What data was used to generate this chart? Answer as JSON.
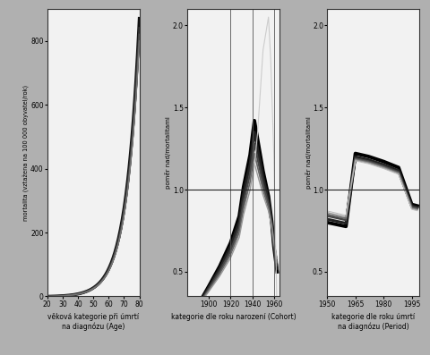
{
  "background_color": "#b0b0b0",
  "plot_bg_color": "#f2f2f2",
  "panel1": {
    "xlabel": "věková kategorie při úmrtí\nna diagnózu (Age)",
    "ylabel": "mortalita (vztažena na 100 000 obyvatel/rok)",
    "xlim": [
      20,
      80
    ],
    "ylim": [
      0,
      900
    ],
    "yticks": [
      0,
      200,
      400,
      600,
      800
    ],
    "xticks": [
      20,
      30,
      40,
      50,
      60,
      70,
      80
    ]
  },
  "panel2": {
    "xlabel": "kategorie dle roku narození (Cohort)",
    "ylabel": "poměr nad/mortalitami",
    "xlim": [
      1880,
      1965
    ],
    "ylim": [
      0.35,
      2.1
    ],
    "yticks": [
      0.5,
      1.0,
      1.5,
      2.0
    ],
    "xticks": [
      1900,
      1920,
      1940,
      1960
    ],
    "vlines": [
      1920,
      1940,
      1960
    ],
    "hline": 1.0
  },
  "panel3": {
    "xlabel": "kategorie dle roku úmrtí\nna diagnózu (Period)",
    "ylabel": "poměr nad/mortalitami",
    "xlim": [
      1950,
      1999
    ],
    "ylim": [
      0.35,
      2.1
    ],
    "yticks": [
      0.5,
      1.0,
      1.5,
      2.0
    ],
    "xticks": [
      1950,
      1965,
      1980,
      1995
    ],
    "hline": 1.0
  },
  "line_colors": [
    "#000000",
    "#222222",
    "#444444",
    "#666666",
    "#999999",
    "#bbbbbb"
  ],
  "line_widths": [
    2.8,
    2.2,
    1.7,
    1.3,
    1.0,
    0.7
  ]
}
